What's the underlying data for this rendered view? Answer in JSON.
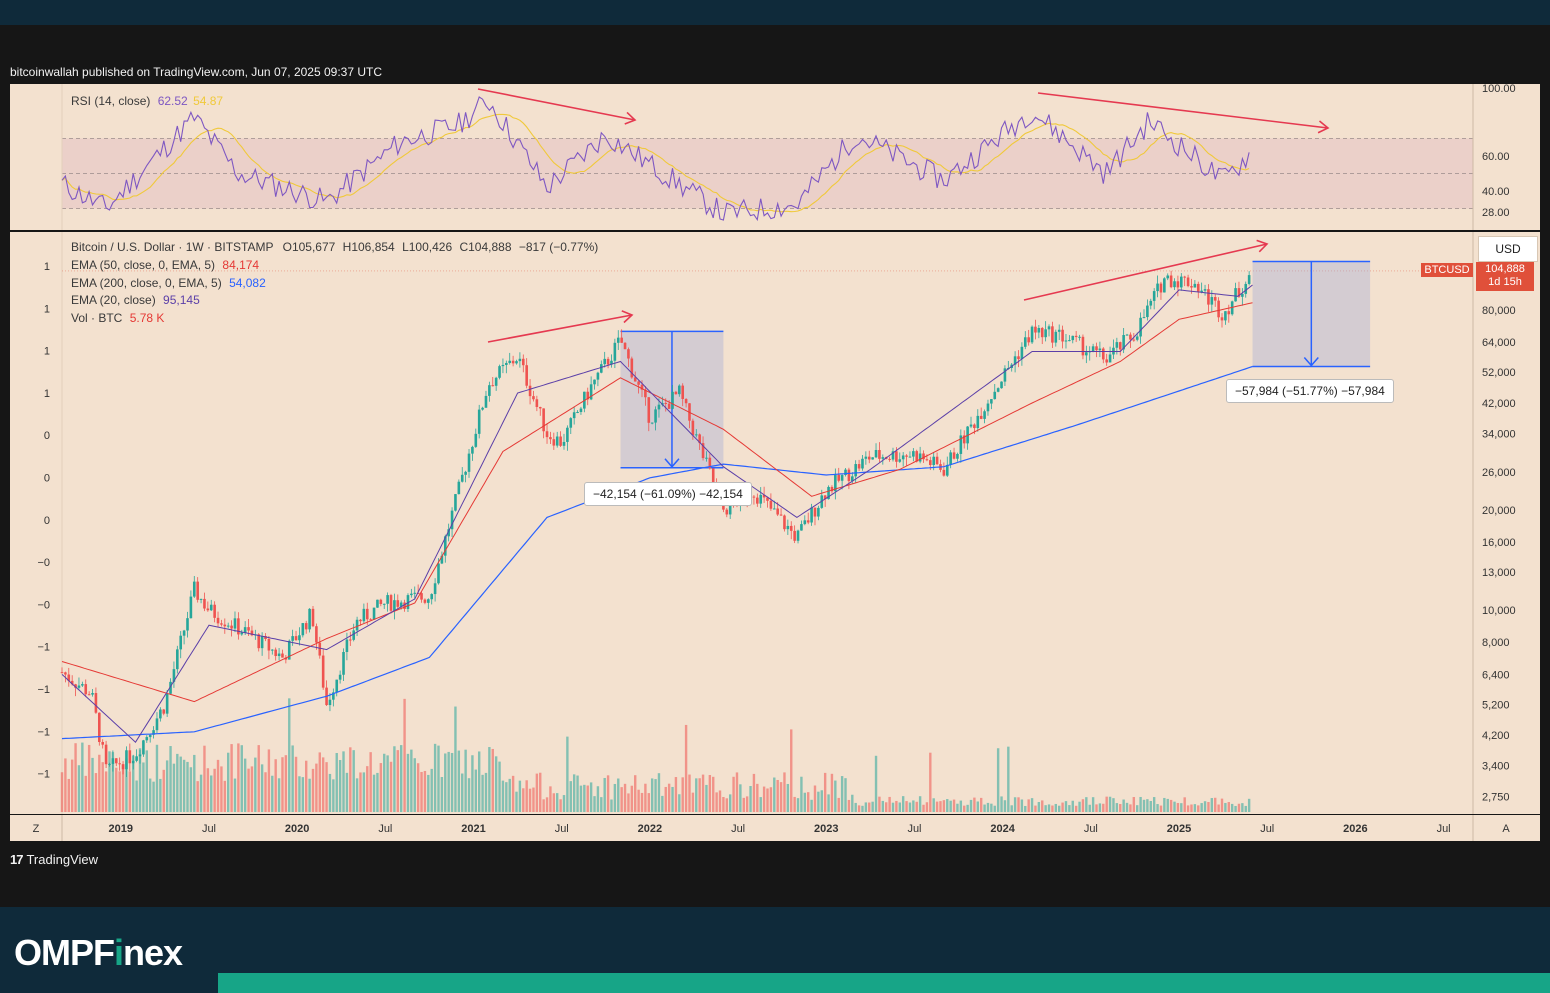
{
  "header": {
    "published": "bitcoinwallah published on TradingView.com, Jun 07, 2025 09:37 UTC"
  },
  "rsi": {
    "label": "RSI (14, close)",
    "value": "62.52",
    "ma_value": "54.87",
    "ticks": [
      "100.00",
      "60.00",
      "40.00",
      "28.00"
    ],
    "colors": {
      "rsi": "#7e57c2",
      "ma": "#f0c93a",
      "band": "#e6c5c5",
      "highlight": "#7fbf6a"
    }
  },
  "main": {
    "title_line": "Bitcoin / U.S. Dollar · 1W · BITSTAMP",
    "ohlc": {
      "o": "O105,677",
      "h": "H106,854",
      "l": "L100,426",
      "c": "C104,888",
      "chg": "−817 (−0.77%)"
    },
    "ema50": {
      "label": "EMA (50, close, 0, EMA, 5)",
      "value": "84,174",
      "color": "#e53935"
    },
    "ema200": {
      "label": "EMA (200, close, 0, EMA, 5)",
      "value": "54,082",
      "color": "#2962ff"
    },
    "ema20": {
      "label": "EMA (20, close)",
      "value": "95,145",
      "color": "#5b3fa8"
    },
    "vol": {
      "label": "Vol · BTC",
      "value": "5.78 K",
      "color": "#e53935"
    },
    "currency": "USD",
    "symbol": "BTCUSD",
    "last_price": "104,888",
    "countdown": "1d 15h",
    "left_scale": [
      "1",
      "1",
      "1",
      "1",
      "0",
      "0",
      "0",
      "−0",
      "−0",
      "−1",
      "−1",
      "−1",
      "−1"
    ],
    "annotation_2022": "−42,154 (−61.09%) −42,154",
    "annotation_2025": "−57,984 (−51.77%) −57,984",
    "colors": {
      "up": "#26a69a",
      "down": "#ef5350",
      "measure": "#2962ff",
      "trend": "#e53950"
    }
  },
  "x_axis": {
    "left_button": "Z",
    "right_button": "A",
    "labels": [
      "2019",
      "Jul",
      "2020",
      "Jul",
      "2021",
      "Jul",
      "2022",
      "Jul",
      "2023",
      "Jul",
      "2024",
      "Jul",
      "2025",
      "Jul",
      "2026",
      "Jul"
    ]
  },
  "footer": {
    "tradingview": "TradingView",
    "brand_pre": "OMPF",
    "brand_i": "i",
    "brand_post": "nex"
  },
  "chart_data": {
    "type": "candlestick",
    "title": "Bitcoin / U.S. Dollar · 1W · BITSTAMP",
    "y_scale": "log",
    "ylim": [
      2500,
      130000
    ],
    "y_ticks": [
      2750,
      3400,
      4200,
      5200,
      6400,
      8000,
      10000,
      13000,
      16000,
      20000,
      26000,
      34000,
      42000,
      52000,
      64000,
      80000
    ],
    "x_start": "2018-09",
    "x_end": "2026-09",
    "price_path": [
      [
        "2018-09",
        6500
      ],
      [
        "2018-11",
        5600
      ],
      [
        "2018-12",
        3300
      ],
      [
        "2019-02",
        3700
      ],
      [
        "2019-04",
        5200
      ],
      [
        "2019-06",
        11500
      ],
      [
        "2019-07",
        10000
      ],
      [
        "2019-10",
        8300
      ],
      [
        "2019-12",
        7200
      ],
      [
        "2020-02",
        9800
      ],
      [
        "2020-03",
        5200
      ],
      [
        "2020-05",
        9200
      ],
      [
        "2020-07",
        10500
      ],
      [
        "2020-10",
        11000
      ],
      [
        "2020-12",
        23000
      ],
      [
        "2021-02",
        48000
      ],
      [
        "2021-04",
        58000
      ],
      [
        "2021-06",
        34000
      ],
      [
        "2021-07",
        32000
      ],
      [
        "2021-09",
        47000
      ],
      [
        "2021-11",
        65000
      ],
      [
        "2022-01",
        38000
      ],
      [
        "2022-03",
        45000
      ],
      [
        "2022-06",
        20000
      ],
      [
        "2022-08",
        23000
      ],
      [
        "2022-11",
        16500
      ],
      [
        "2023-01",
        23000
      ],
      [
        "2023-04",
        29000
      ],
      [
        "2023-07",
        29500
      ],
      [
        "2023-09",
        26500
      ],
      [
        "2023-12",
        43000
      ],
      [
        "2024-03",
        69000
      ],
      [
        "2024-05",
        67000
      ],
      [
        "2024-08",
        57000
      ],
      [
        "2024-10",
        68000
      ],
      [
        "2024-12",
        100000
      ],
      [
        "2025-02",
        97000
      ],
      [
        "2025-04",
        78000
      ],
      [
        "2025-06",
        104888
      ]
    ],
    "ema50_path": [
      [
        "2018-09",
        7000
      ],
      [
        "2019-06",
        5300
      ],
      [
        "2020-03",
        8200
      ],
      [
        "2020-09",
        10500
      ],
      [
        "2021-03",
        30000
      ],
      [
        "2021-11",
        50000
      ],
      [
        "2022-06",
        35000
      ],
      [
        "2022-12",
        22000
      ],
      [
        "2023-06",
        26500
      ],
      [
        "2024-03",
        42000
      ],
      [
        "2024-09",
        56000
      ],
      [
        "2025-01",
        75000
      ],
      [
        "2025-06",
        84174
      ]
    ],
    "ema200_path": [
      [
        "2018-09",
        4100
      ],
      [
        "2019-06",
        4300
      ],
      [
        "2020-03",
        5500
      ],
      [
        "2020-10",
        7200
      ],
      [
        "2021-06",
        19000
      ],
      [
        "2022-01",
        25000
      ],
      [
        "2022-06",
        27500
      ],
      [
        "2023-01",
        25500
      ],
      [
        "2023-09",
        27000
      ],
      [
        "2024-06",
        36000
      ],
      [
        "2025-06",
        54082
      ]
    ],
    "ema20_path": [
      [
        "2018-09",
        6400
      ],
      [
        "2019-02",
        4000
      ],
      [
        "2019-07",
        9000
      ],
      [
        "2020-03",
        7600
      ],
      [
        "2020-09",
        10800
      ],
      [
        "2021-04",
        45000
      ],
      [
        "2021-11",
        56000
      ],
      [
        "2022-06",
        27000
      ],
      [
        "2022-11",
        19000
      ],
      [
        "2023-04",
        26500
      ],
      [
        "2024-03",
        60000
      ],
      [
        "2024-09",
        60000
      ],
      [
        "2025-01",
        92000
      ],
      [
        "2025-05",
        88000
      ],
      [
        "2025-06",
        95145
      ]
    ],
    "rsi_path": [
      [
        "2018-09",
        44
      ],
      [
        "2018-12",
        30
      ],
      [
        "2019-06",
        82
      ],
      [
        "2019-09",
        50
      ],
      [
        "2020-03",
        34
      ],
      [
        "2020-08",
        68
      ],
      [
        "2020-12",
        78
      ],
      [
        "2021-02",
        92
      ],
      [
        "2021-06",
        42
      ],
      [
        "2021-10",
        72
      ],
      [
        "2022-06",
        27
      ],
      [
        "2022-11",
        32
      ],
      [
        "2023-03",
        72
      ],
      [
        "2023-09",
        46
      ],
      [
        "2024-03",
        86
      ],
      [
        "2024-08",
        50
      ],
      [
        "2024-11",
        80
      ],
      [
        "2025-04",
        46
      ],
      [
        "2025-06",
        62.52
      ]
    ],
    "measure_2022": {
      "from": [
        "2021-11",
        69000
      ],
      "to": [
        "2022-06",
        26800
      ],
      "change": -42154,
      "pct": -61.09
    },
    "measure_2025": {
      "from": [
        "2025-06",
        112000
      ],
      "to": [
        "2026-02",
        54082
      ],
      "change": -57984,
      "pct": -51.77
    },
    "volume_btc_last": 5780
  }
}
